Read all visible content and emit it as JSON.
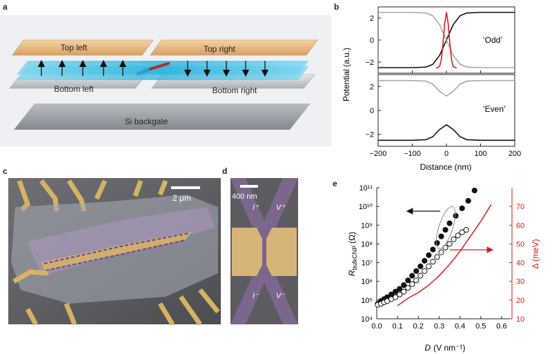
{
  "panels": {
    "a": {
      "letter": "a",
      "labels": {
        "top_left": "Top left",
        "top_right": "Top right",
        "bottom_left": "Bottom left",
        "bottom_right": "Bottom right",
        "backgate": "Si backgate"
      },
      "colors": {
        "gold": "#e3b57a",
        "cyan": "#3bbde0",
        "grey": "#c9ccd1",
        "backgate": "#9ea1a6",
        "electron": "#2a9ed8",
        "hole": "#b02a2a"
      }
    },
    "b": {
      "letter": "b",
      "ylabel": "Potential (a.u.)",
      "xlabel": "Distance (nm)",
      "odd_label": "‘Odd’",
      "even_label": "‘Even’"
    },
    "c": {
      "letter": "c",
      "scale_label": "2 μm"
    },
    "d": {
      "letter": "d",
      "scale_label": "400 nm",
      "probe_top_left": "I⁺",
      "probe_top_right": "V⁺",
      "probe_bottom_left": "I⁻",
      "probe_bottom_right": "V⁻"
    },
    "e": {
      "letter": "e",
      "ylabel_left_main": "R",
      "ylabel_left_sub": "bulkCNP",
      "ylabel_left_unit": "(Ω)",
      "ylabel_right": "Δ (meV)",
      "xlabel_main": "D",
      "xlabel_unit": "(V nm⁻¹)"
    }
  },
  "chart_data": [
    {
      "id": "b-odd",
      "type": "line",
      "title": "‘Odd’",
      "xlabel": "Distance (nm)",
      "ylabel": "Potential (a.u.)",
      "xlim": [
        -200,
        200
      ],
      "ylim": [
        -3,
        3
      ],
      "xticks": [
        -200,
        -100,
        0,
        100,
        200
      ],
      "yticks": [
        -2,
        0,
        2
      ],
      "tick_labels_y": [
        "−2",
        "0",
        "2"
      ],
      "series": [
        {
          "name": "black",
          "color": "#111111",
          "x": [
            -200,
            -100,
            -60,
            -40,
            -20,
            0,
            20,
            40,
            60,
            100,
            200
          ],
          "y": [
            -2.5,
            -2.5,
            -2.45,
            -2.2,
            -1.4,
            0,
            1.4,
            2.2,
            2.45,
            2.5,
            2.5
          ]
        },
        {
          "name": "grey",
          "color": "#a8a8a8",
          "x": [
            -200,
            -100,
            -60,
            -40,
            -20,
            0,
            20,
            40,
            60,
            100,
            200
          ],
          "y": [
            2.5,
            2.5,
            2.45,
            2.2,
            1.4,
            0,
            -1.4,
            -2.2,
            -2.45,
            -2.5,
            -2.5
          ]
        },
        {
          "name": "red",
          "color": "#e0191b",
          "x": [
            -30,
            -20,
            -15,
            -10,
            -5,
            0,
            5,
            10,
            15,
            20,
            30
          ],
          "y": [
            -2.55,
            -2.4,
            -1.8,
            -0.3,
            1.5,
            2.5,
            1.5,
            -0.3,
            -1.8,
            -2.4,
            -2.55
          ]
        }
      ]
    },
    {
      "id": "b-even",
      "type": "line",
      "title": "‘Even’",
      "xlabel": "Distance (nm)",
      "xlim": [
        -200,
        200
      ],
      "ylim": [
        -3,
        3
      ],
      "xticks": [
        -200,
        -100,
        0,
        100,
        200
      ],
      "tick_labels_x": [
        "−200",
        "−100",
        "0",
        "100",
        "200"
      ],
      "yticks": [
        -2,
        0,
        2
      ],
      "tick_labels_y": [
        "−2",
        "0",
        "2"
      ],
      "series": [
        {
          "name": "black",
          "color": "#111111",
          "x": [
            -200,
            -100,
            -60,
            -40,
            -20,
            0,
            20,
            40,
            60,
            100,
            200
          ],
          "y": [
            -2.5,
            -2.5,
            -2.45,
            -2.2,
            -1.6,
            -1.2,
            -1.6,
            -2.2,
            -2.45,
            -2.5,
            -2.5
          ]
        },
        {
          "name": "grey",
          "color": "#a8a8a8",
          "x": [
            -200,
            -100,
            -60,
            -40,
            -20,
            0,
            20,
            40,
            60,
            100,
            200
          ],
          "y": [
            2.5,
            2.5,
            2.45,
            2.2,
            1.6,
            1.2,
            1.6,
            2.2,
            2.45,
            2.5,
            2.5
          ]
        }
      ]
    },
    {
      "id": "e",
      "type": "scatter",
      "xlabel": "D (V nm⁻¹)",
      "ylabel": "R_bulkCNP (Ω)",
      "y2label": "Δ (meV)",
      "xlim": [
        0,
        0.65
      ],
      "xticks": [
        0,
        0.1,
        0.2,
        0.3,
        0.4,
        0.5,
        0.6
      ],
      "tick_labels_x": [
        "0.0",
        "0.1",
        "0.2",
        "0.3",
        "0.4",
        "0.5",
        "0.6"
      ],
      "ylim_log10": [
        4,
        11
      ],
      "yticks_log10": [
        4,
        5,
        6,
        7,
        8,
        9,
        10,
        11
      ],
      "tick_labels_y": [
        "10⁴",
        "10⁵",
        "10⁶",
        "10⁷",
        "10⁸",
        "10⁹",
        "10¹⁰",
        "10¹¹"
      ],
      "y2lim": [
        10,
        80
      ],
      "y2ticks": [
        10,
        20,
        30,
        40,
        50,
        60,
        70
      ],
      "series": [
        {
          "name": "filled",
          "marker": "filled",
          "color": "#111111",
          "x": [
            0.005,
            0.02,
            0.035,
            0.05,
            0.07,
            0.09,
            0.11,
            0.13,
            0.15,
            0.17,
            0.19,
            0.21,
            0.23,
            0.25,
            0.27,
            0.29,
            0.31,
            0.33,
            0.35,
            0.38,
            0.41,
            0.44,
            0.47
          ],
          "log10y": [
            4.8,
            4.95,
            5.05,
            5.15,
            5.3,
            5.45,
            5.6,
            5.8,
            6.05,
            6.3,
            6.55,
            6.8,
            7.1,
            7.4,
            7.7,
            8.05,
            8.4,
            8.75,
            9.1,
            9.5,
            9.9,
            10.3,
            10.85
          ]
        },
        {
          "name": "open",
          "marker": "open",
          "color": "#111111",
          "x": [
            0.005,
            0.02,
            0.035,
            0.05,
            0.07,
            0.09,
            0.11,
            0.13,
            0.15,
            0.17,
            0.19,
            0.21,
            0.23,
            0.25,
            0.27,
            0.29,
            0.31,
            0.33,
            0.35,
            0.37,
            0.39,
            0.41,
            0.43
          ],
          "log10y": [
            4.75,
            4.8,
            4.88,
            4.95,
            5.05,
            5.15,
            5.3,
            5.45,
            5.65,
            5.85,
            6.05,
            6.3,
            6.55,
            6.8,
            7.05,
            7.3,
            7.55,
            7.8,
            8.0,
            8.25,
            8.45,
            8.62,
            8.75
          ]
        },
        {
          "name": "gap",
          "type": "line",
          "axis": "right",
          "color": "#e0191b",
          "x": [
            0.1,
            0.15,
            0.2,
            0.25,
            0.3,
            0.35,
            0.4,
            0.45,
            0.5,
            0.55
          ],
          "y": [
            17,
            21,
            24,
            28,
            33,
            39,
            46,
            54,
            62,
            71
          ]
        }
      ]
    }
  ]
}
